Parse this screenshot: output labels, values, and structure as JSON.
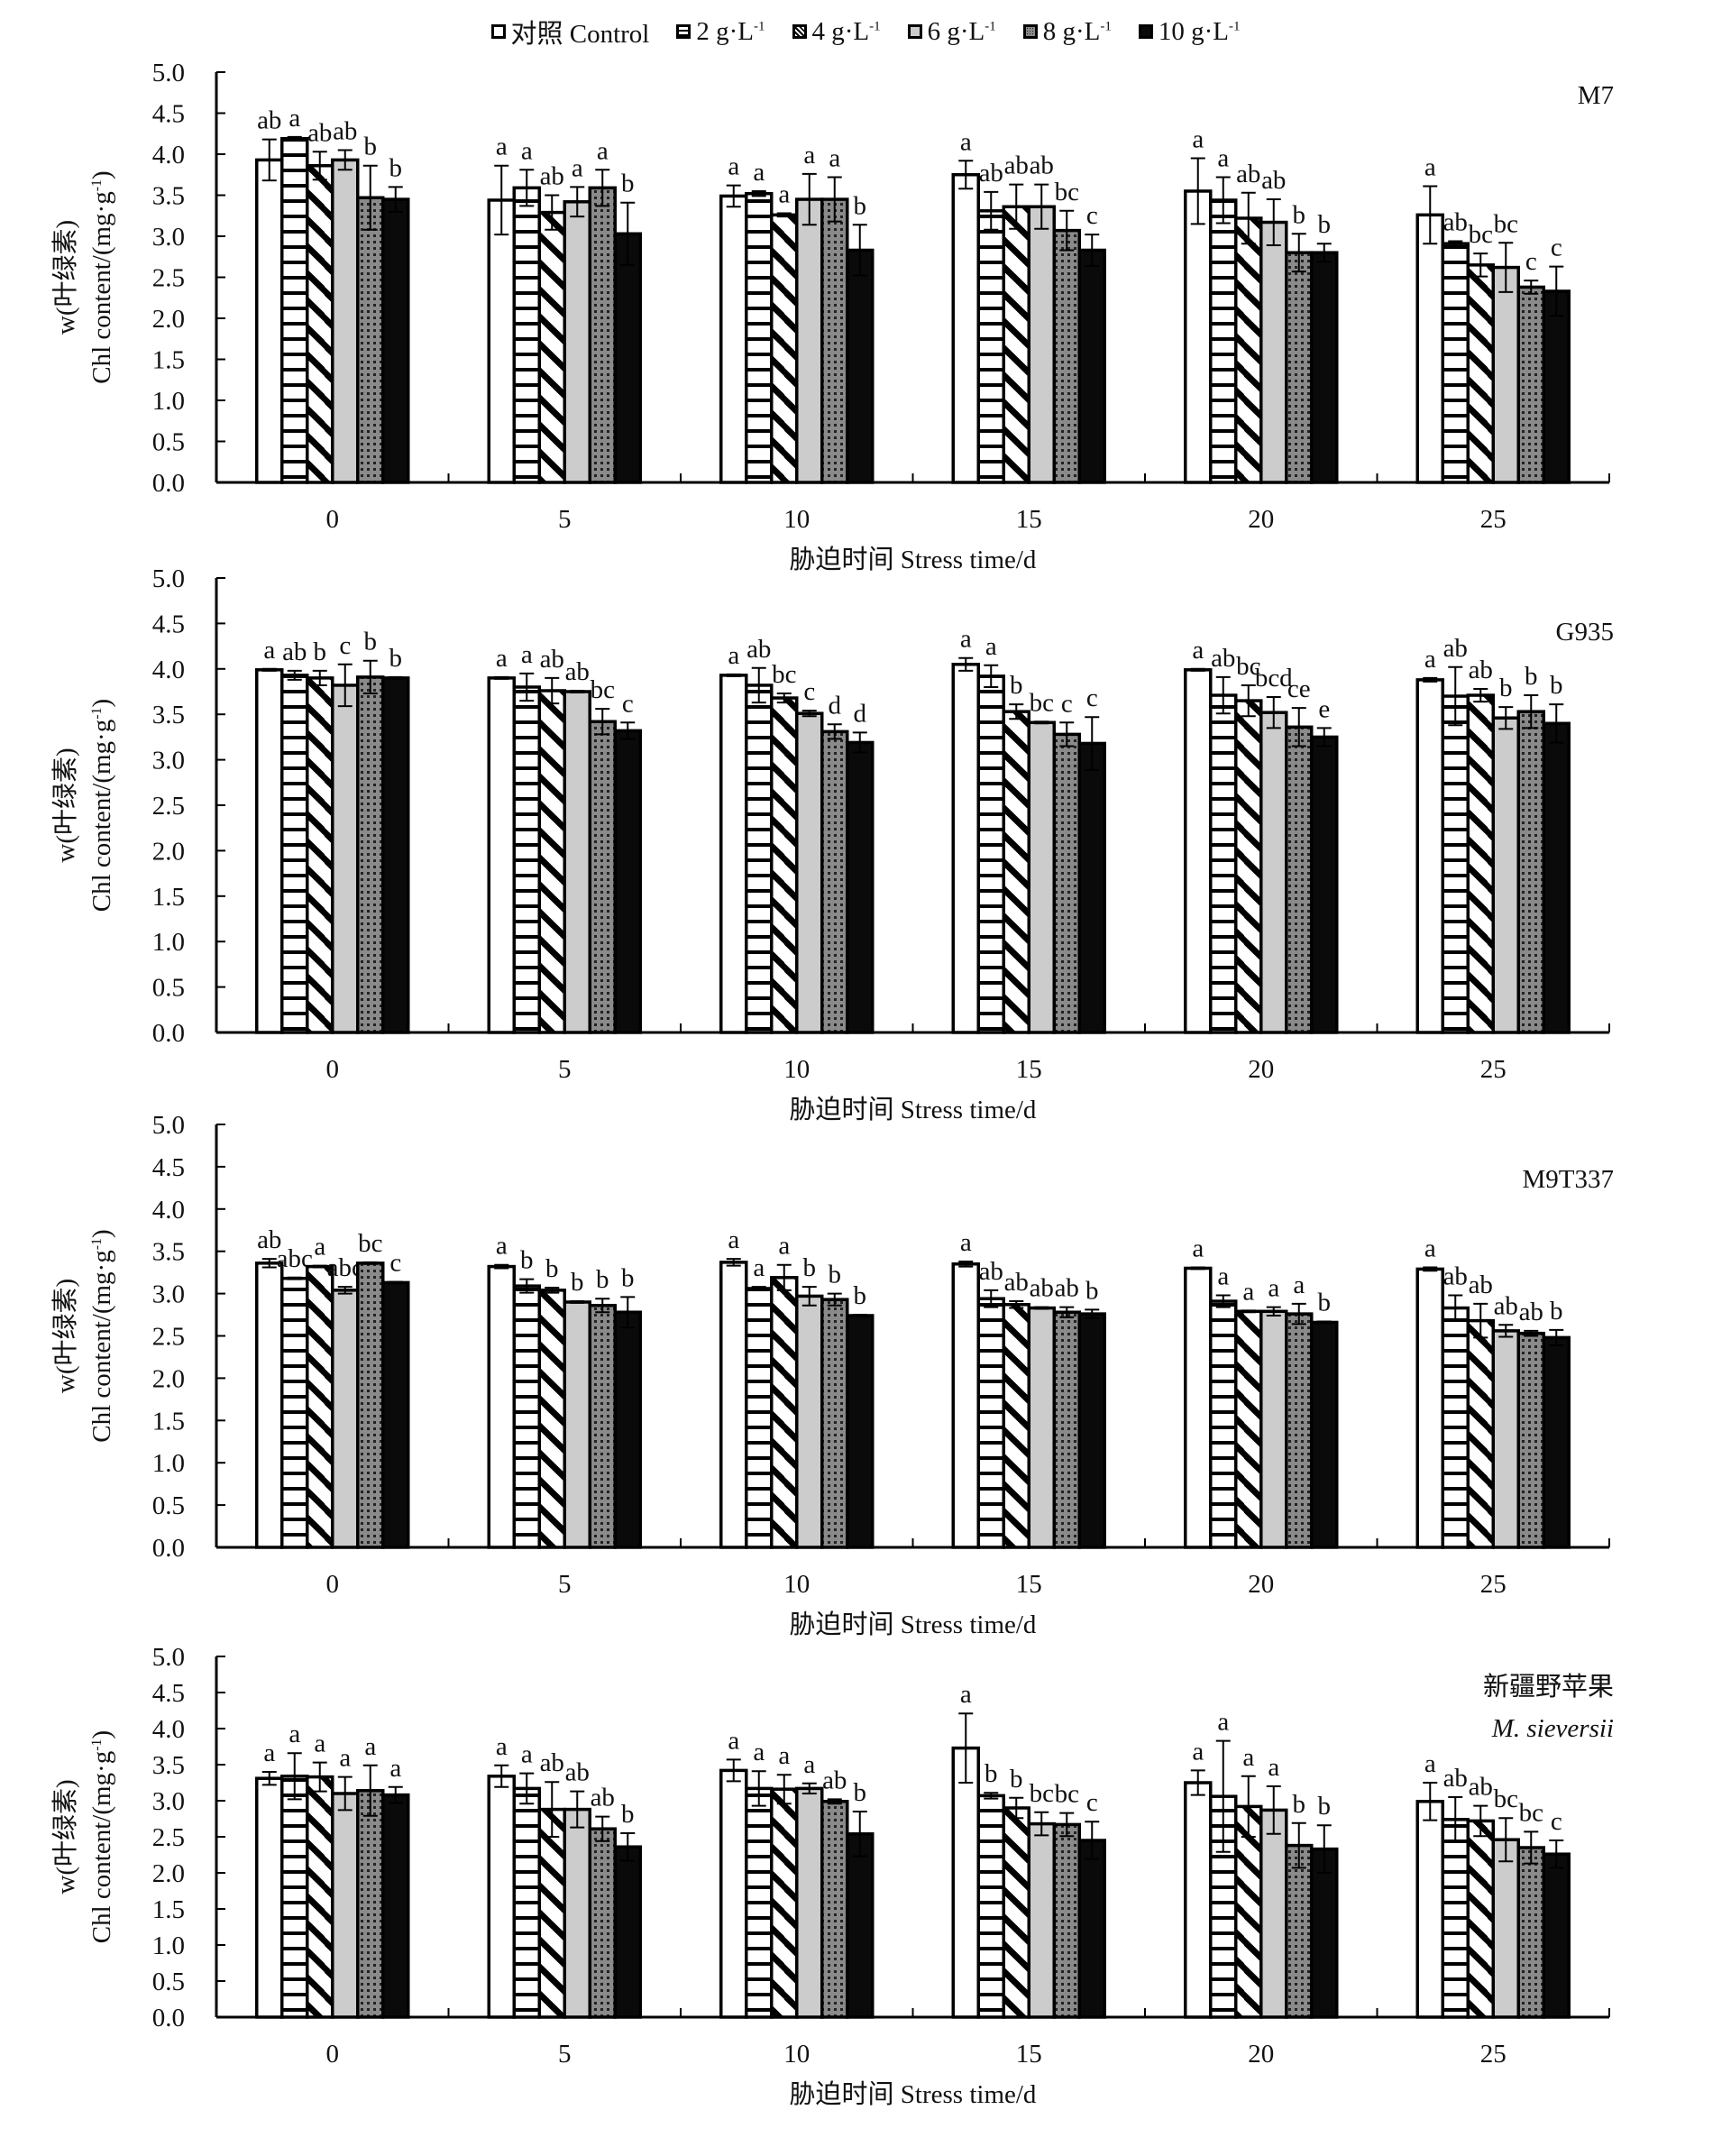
{
  "legend": [
    {
      "label": "对照 Control",
      "pattern": "white"
    },
    {
      "label": "2 g·L",
      "sup": "-1",
      "pattern": "hlines"
    },
    {
      "label": "4 g·L",
      "sup": "-1",
      "pattern": "diag"
    },
    {
      "label": "6 g·L",
      "sup": "-1",
      "pattern": "gray"
    },
    {
      "label": "8 g·L",
      "sup": "-1",
      "pattern": "dots"
    },
    {
      "label": "10 g·L",
      "sup": "-1",
      "pattern": "black"
    }
  ],
  "colors": {
    "gray": "#cccccc",
    "dots_bg": "#8a8a8a",
    "black": "#0a0a0a",
    "stroke": "#000000"
  },
  "chart_data": [
    {
      "type": "bar",
      "title": "M7",
      "title_italic": false,
      "ylabel_line1": "w(叶绿素)",
      "ylabel_line2": "Chl content/(mg·g",
      "ylabel_sup": "-1",
      "xlabel": "胁迫时间 Stress time/d",
      "categories": [
        "0",
        "5",
        "10",
        "15",
        "20",
        "25"
      ],
      "ylim": [
        0,
        5
      ],
      "yticks": [
        "0.0",
        "0.5",
        "1.0",
        "1.5",
        "2.0",
        "2.5",
        "3.0",
        "3.5",
        "4.0",
        "4.5",
        "5.0"
      ],
      "series": [
        {
          "name": "对照 Control",
          "values": [
            3.93,
            3.44,
            3.49,
            3.75,
            3.55,
            3.26
          ],
          "errors": [
            0.25,
            0.42,
            0.13,
            0.17,
            0.4,
            0.35
          ]
        },
        {
          "name": "2 g·L-1",
          "values": [
            4.19,
            3.59,
            3.52,
            3.31,
            3.44,
            2.91
          ],
          "errors": [
            0.02,
            0.22,
            0.03,
            0.23,
            0.28,
            0.03
          ]
        },
        {
          "name": "4 g·L-1",
          "values": [
            3.86,
            3.29,
            3.26,
            3.36,
            3.22,
            2.65
          ],
          "errors": [
            0.17,
            0.21,
            0.02,
            0.27,
            0.31,
            0.14
          ]
        },
        {
          "name": "6 g·L-1",
          "values": [
            3.93,
            3.42,
            3.45,
            3.36,
            3.17,
            2.62
          ],
          "errors": [
            0.12,
            0.18,
            0.31,
            0.27,
            0.28,
            0.3
          ]
        },
        {
          "name": "8 g·L-1",
          "values": [
            3.47,
            3.59,
            3.45,
            3.07,
            2.8,
            2.38
          ],
          "errors": [
            0.39,
            0.22,
            0.27,
            0.24,
            0.23,
            0.08
          ]
        },
        {
          "name": "10 g·L-1",
          "values": [
            3.45,
            3.03,
            2.83,
            2.83,
            2.8,
            2.33
          ],
          "errors": [
            0.15,
            0.38,
            0.31,
            0.19,
            0.11,
            0.3
          ]
        }
      ],
      "letters": [
        [
          "ab",
          "a",
          "ab",
          "ab",
          "b",
          "b"
        ],
        [
          "a",
          "a",
          "ab",
          "a",
          "a",
          "b"
        ],
        [
          "a",
          "a",
          "a",
          "a",
          "a",
          "b"
        ],
        [
          "a",
          "ab",
          "ab",
          "ab",
          "bc",
          "c"
        ],
        [
          "a",
          "a",
          "ab",
          "ab",
          "b",
          "b"
        ],
        [
          "a",
          "ab",
          "bc",
          "bc",
          "c",
          "c"
        ]
      ]
    },
    {
      "type": "bar",
      "title": "G935",
      "title_italic": false,
      "ylabel_line1": "w(叶绿素)",
      "ylabel_line2": "Chl content/(mg·g",
      "ylabel_sup": "-1",
      "xlabel": "胁迫时间 Stress time/d",
      "categories": [
        "0",
        "5",
        "10",
        "15",
        "20",
        "25"
      ],
      "ylim": [
        0,
        5
      ],
      "yticks": [
        "0.0",
        "0.5",
        "1.0",
        "1.5",
        "2.0",
        "2.5",
        "3.0",
        "3.5",
        "4.0",
        "4.5",
        "5.0"
      ],
      "series": [
        {
          "name": "对照 Control",
          "values": [
            3.99,
            3.9,
            3.93,
            4.05,
            3.99,
            3.88
          ],
          "errors": [
            0.01,
            0.01,
            0.01,
            0.07,
            0.01,
            0.02
          ]
        },
        {
          "name": "2 g·L-1",
          "values": [
            3.93,
            3.8,
            3.82,
            3.92,
            3.71,
            3.7
          ],
          "errors": [
            0.05,
            0.15,
            0.19,
            0.12,
            0.2,
            0.32
          ]
        },
        {
          "name": "4 g·L-1",
          "values": [
            3.9,
            3.76,
            3.68,
            3.53,
            3.65,
            3.71
          ],
          "errors": [
            0.08,
            0.14,
            0.05,
            0.08,
            0.17,
            0.07
          ]
        },
        {
          "name": "6 g·L-1",
          "values": [
            3.82,
            3.75,
            3.51,
            3.41,
            3.52,
            3.46
          ],
          "errors": [
            0.23,
            0.01,
            0.03,
            0.01,
            0.17,
            0.12
          ]
        },
        {
          "name": "8 g·L-1",
          "values": [
            3.91,
            3.42,
            3.31,
            3.28,
            3.36,
            3.53
          ],
          "errors": [
            0.18,
            0.14,
            0.08,
            0.13,
            0.21,
            0.18
          ]
        },
        {
          "name": "10 g·L-1",
          "values": [
            3.9,
            3.32,
            3.19,
            3.18,
            3.25,
            3.4
          ],
          "errors": [
            0.01,
            0.09,
            0.11,
            0.29,
            0.1,
            0.21
          ]
        }
      ],
      "letters": [
        [
          "a",
          "ab",
          "b",
          "c",
          "b",
          "b"
        ],
        [
          "a",
          "a",
          "ab",
          "ab",
          "bc",
          "c"
        ],
        [
          "a",
          "ab",
          "bc",
          "c",
          "d",
          "d"
        ],
        [
          "a",
          "a",
          "b",
          "bc",
          "c",
          "c"
        ],
        [
          "a",
          "ab",
          "bc",
          "bcd",
          "ce",
          "e"
        ],
        [
          "a",
          "ab",
          "ab",
          "b",
          "b",
          "b"
        ]
      ]
    },
    {
      "type": "bar",
      "title": "M9T337",
      "title_italic": false,
      "ylabel_line1": "w(叶绿素)",
      "ylabel_line2": "Chl content/(mg·g",
      "ylabel_sup": "-1",
      "xlabel": "胁迫时间 Stress time/d",
      "categories": [
        "0",
        "5",
        "10",
        "15",
        "20",
        "25"
      ],
      "ylim": [
        0,
        5
      ],
      "yticks": [
        "0.0",
        "0.5",
        "1.0",
        "1.5",
        "2.0",
        "2.5",
        "3.0",
        "3.5",
        "4.0",
        "4.5",
        "5.0"
      ],
      "series": [
        {
          "name": "对照 Control",
          "values": [
            3.36,
            3.32,
            3.37,
            3.35,
            3.3,
            3.29
          ],
          "errors": [
            0.05,
            0.02,
            0.04,
            0.03,
            0.01,
            0.02
          ]
        },
        {
          "name": "2 g·L-1",
          "values": [
            3.18,
            3.09,
            3.06,
            2.94,
            2.91,
            2.83
          ],
          "errors": [
            0.01,
            0.08,
            0.02,
            0.1,
            0.07,
            0.15
          ]
        },
        {
          "name": "4 g·L-1",
          "values": [
            3.32,
            3.04,
            3.19,
            2.87,
            2.79,
            2.68
          ],
          "errors": [
            0.01,
            0.03,
            0.15,
            0.04,
            0.01,
            0.2
          ]
        },
        {
          "name": "6 g·L-1",
          "values": [
            3.04,
            2.9,
            2.97,
            2.83,
            2.79,
            2.56
          ],
          "errors": [
            0.04,
            0.01,
            0.11,
            0.01,
            0.05,
            0.07
          ]
        },
        {
          "name": "8 g·L-1",
          "values": [
            3.36,
            2.86,
            2.93,
            2.78,
            2.76,
            2.53
          ],
          "errors": [
            0.01,
            0.08,
            0.07,
            0.06,
            0.12,
            0.03
          ]
        },
        {
          "name": "10 g·L-1",
          "values": [
            3.13,
            2.78,
            2.74,
            2.76,
            2.66,
            2.48
          ],
          "errors": [
            0.01,
            0.18,
            0.01,
            0.05,
            0.01,
            0.09
          ]
        }
      ],
      "letters": [
        [
          "ab",
          "abc",
          "a",
          "abc",
          "bc",
          "c"
        ],
        [
          "a",
          "b",
          "b",
          "b",
          "b",
          "b"
        ],
        [
          "a",
          "a",
          "a",
          "b",
          "b",
          "b"
        ],
        [
          "a",
          "ab",
          "ab",
          "ab",
          "ab",
          "b"
        ],
        [
          "a",
          "a",
          "a",
          "a",
          "a",
          "b"
        ],
        [
          "a",
          "ab",
          "ab",
          "ab",
          "ab",
          "b"
        ]
      ]
    },
    {
      "type": "bar",
      "title": "新疆野苹果",
      "subtitle": "M. sieversii",
      "title_italic": false,
      "ylabel_line1": "w(叶绿素)",
      "ylabel_line2": "Chl content/(mg·g",
      "ylabel_sup": "-1",
      "xlabel": "胁迫时间 Stress time/d",
      "categories": [
        "0",
        "5",
        "10",
        "15",
        "20",
        "25"
      ],
      "ylim": [
        0,
        5
      ],
      "yticks": [
        "0.0",
        "0.5",
        "1.0",
        "1.5",
        "2.0",
        "2.5",
        "3.0",
        "3.5",
        "4.0",
        "4.5",
        "5.0"
      ],
      "series": [
        {
          "name": "对照 Control",
          "values": [
            3.31,
            3.34,
            3.42,
            3.73,
            3.25,
            2.99
          ],
          "errors": [
            0.09,
            0.15,
            0.15,
            0.48,
            0.17,
            0.26
          ]
        },
        {
          "name": "2 g·L-1",
          "values": [
            3.34,
            3.17,
            3.17,
            3.07,
            3.06,
            2.74
          ],
          "errors": [
            0.32,
            0.21,
            0.24,
            0.04,
            0.77,
            0.31
          ]
        },
        {
          "name": "4 g·L-1",
          "values": [
            3.33,
            2.88,
            3.16,
            2.9,
            2.92,
            2.72
          ],
          "errors": [
            0.2,
            0.38,
            0.2,
            0.14,
            0.42,
            0.21
          ]
        },
        {
          "name": "6 g·L-1",
          "values": [
            3.1,
            2.88,
            3.17,
            2.68,
            2.87,
            2.46
          ],
          "errors": [
            0.23,
            0.25,
            0.07,
            0.16,
            0.33,
            0.3
          ]
        },
        {
          "name": "8 g·L-1",
          "values": [
            3.14,
            2.61,
            2.99,
            2.67,
            2.38,
            2.35
          ],
          "errors": [
            0.35,
            0.17,
            0.03,
            0.16,
            0.31,
            0.22
          ]
        },
        {
          "name": "10 g·L-1",
          "values": [
            3.08,
            2.36,
            2.54,
            2.45,
            2.33,
            2.26
          ],
          "errors": [
            0.11,
            0.19,
            0.31,
            0.26,
            0.33,
            0.19
          ]
        }
      ],
      "letters": [
        [
          "a",
          "a",
          "a",
          "a",
          "a",
          "a"
        ],
        [
          "a",
          "a",
          "ab",
          "ab",
          "ab",
          "b"
        ],
        [
          "a",
          "a",
          "a",
          "a",
          "ab",
          "b"
        ],
        [
          "a",
          "b",
          "b",
          "bc",
          "bc",
          "c"
        ],
        [
          "a",
          "a",
          "a",
          "a",
          "b",
          "b"
        ],
        [
          "a",
          "ab",
          "ab",
          "bc",
          "bc",
          "c"
        ]
      ]
    }
  ]
}
